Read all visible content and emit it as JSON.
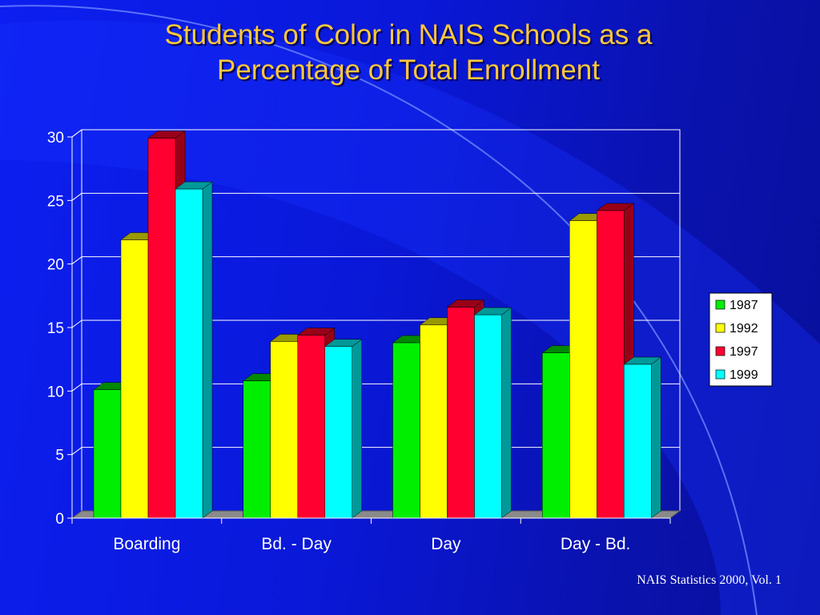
{
  "slide": {
    "title_line1": "Students of Color in NAIS Schools as a",
    "title_line2": "Percentage of Total Enrollment",
    "source": "NAIS Statistics 2000, Vol. 1"
  },
  "colors": {
    "title": "#ffc83c",
    "background": "#0c1ff0",
    "gridline": "#ffffff",
    "floor": "#8a8a8a",
    "series": [
      "#00ee00",
      "#ffff00",
      "#ff0030",
      "#00ffff"
    ],
    "series_side": [
      "#008800",
      "#999900",
      "#990018",
      "#009999"
    ]
  },
  "chart_data": {
    "type": "bar",
    "title": "Students of Color in NAIS Schools as a Percentage of Total Enrollment",
    "categories": [
      "Boarding",
      "Bd. - Day",
      "Day",
      "Day - Bd."
    ],
    "series": [
      {
        "name": "1987",
        "values": [
          10.1,
          10.8,
          13.8,
          13.0
        ]
      },
      {
        "name": "1992",
        "values": [
          21.9,
          13.9,
          15.2,
          23.4
        ]
      },
      {
        "name": "1997",
        "values": [
          29.9,
          14.4,
          16.6,
          24.2
        ]
      },
      {
        "name": "1999",
        "values": [
          25.9,
          13.5,
          16.0,
          12.1
        ]
      }
    ],
    "yticks": [
      "0",
      "5",
      "10",
      "15",
      "20",
      "25",
      "30"
    ],
    "ylim": [
      0,
      30
    ],
    "grid": true,
    "legend": "right",
    "style": "3d-bar"
  }
}
